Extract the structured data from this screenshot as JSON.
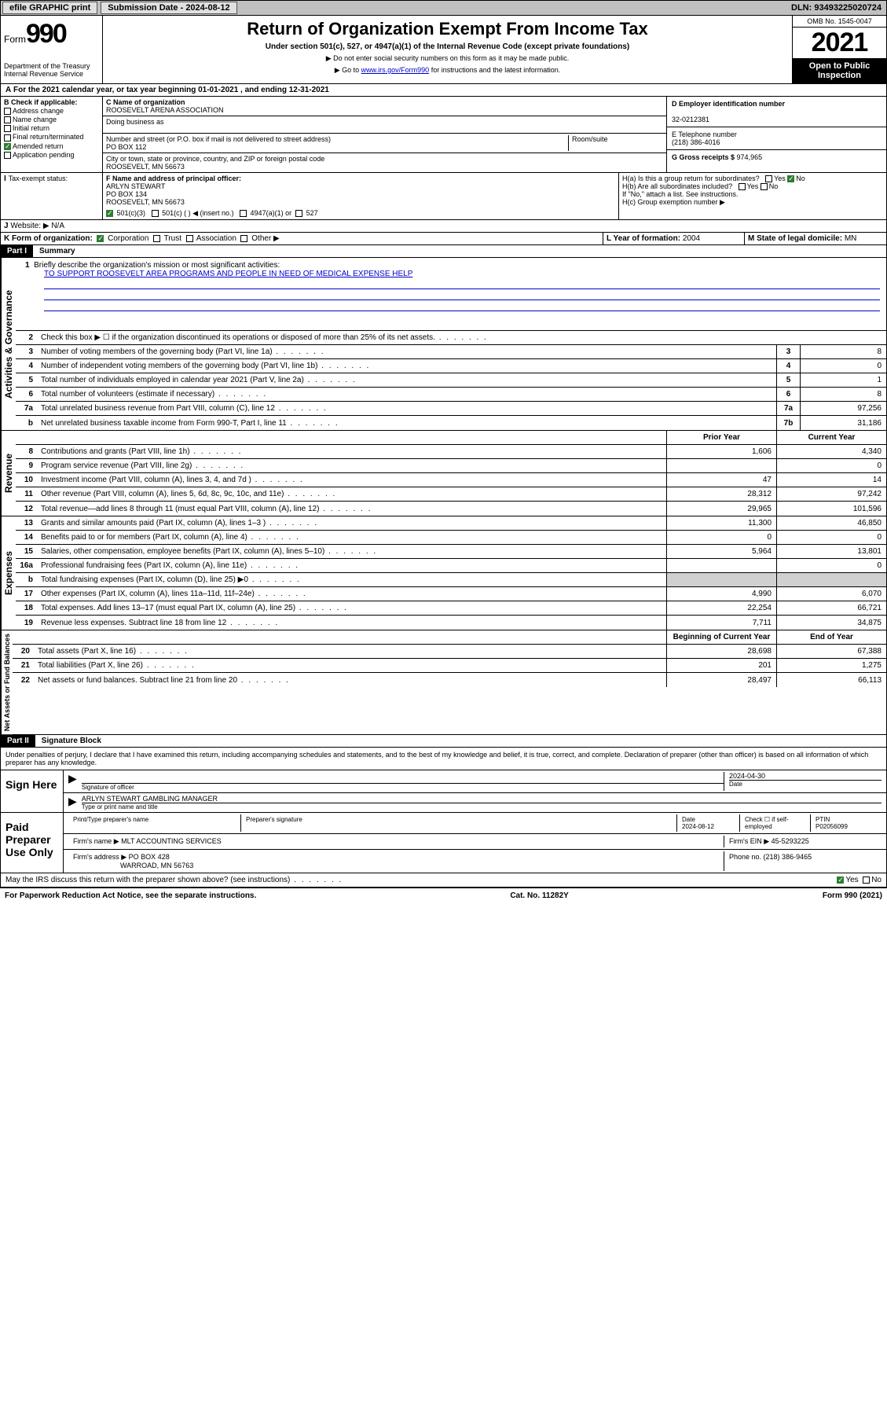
{
  "topbar": {
    "efile": "efile GRAPHIC print",
    "submission_label": "Submission Date - 2024-08-12",
    "dln": "DLN: 93493225020724"
  },
  "header": {
    "form_word": "Form",
    "form_num": "990",
    "dept": "Department of the Treasury Internal Revenue Service",
    "title": "Return of Organization Exempt From Income Tax",
    "subtitle": "Under section 501(c), 527, or 4947(a)(1) of the Internal Revenue Code (except private foundations)",
    "note1": "▶ Do not enter social security numbers on this form as it may be made public.",
    "note2_pre": "▶ Go to ",
    "note2_link": "www.irs.gov/Form990",
    "note2_post": " for instructions and the latest information.",
    "omb": "OMB No. 1545-0047",
    "year": "2021",
    "open": "Open to Public Inspection"
  },
  "line_a": "For the 2021 calendar year, or tax year beginning 01-01-2021   , and ending 12-31-2021",
  "section_b": {
    "title": "B Check if applicable:",
    "opts": [
      "Address change",
      "Name change",
      "Initial return",
      "Final return/terminated",
      "Amended return",
      "Application pending"
    ]
  },
  "block_c": {
    "label_name": "C Name of organization",
    "name": "ROOSEVELT ARENA ASSOCIATION",
    "dba_label": "Doing business as",
    "addr_label": "Number and street (or P.O. box if mail is not delivered to street address)",
    "room_label": "Room/suite",
    "addr": "PO BOX 112",
    "city_label": "City or town, state or province, country, and ZIP or foreign postal code",
    "city": "ROOSEVELT, MN  56673"
  },
  "block_d": {
    "label": "D Employer identification number",
    "val": "32-0212381"
  },
  "block_e": {
    "label": "E Telephone number",
    "val": "(218) 386-4016"
  },
  "block_g": {
    "label": "G Gross receipts $ ",
    "val": "974,965"
  },
  "block_f": {
    "label": "F Name and address of principal officer:",
    "lines": [
      "ARLYN STEWART",
      "PO BOX 134",
      "ROOSEVELT, MN  56673"
    ]
  },
  "block_h": {
    "a": "H(a)  Is this a group return for subordinates?",
    "b": "H(b)  Are all subordinates included?",
    "note": "If \"No,\" attach a list. See instructions.",
    "c": "H(c)  Group exemption number ▶"
  },
  "line_i": {
    "label": "Tax-exempt status:",
    "opts": [
      "501(c)(3)",
      "501(c) (  ) ◀ (insert no.)",
      "4947(a)(1) or",
      "527"
    ]
  },
  "line_j": {
    "label": "Website: ▶",
    "val": "N/A"
  },
  "line_k": {
    "label": "K Form of organization:",
    "opts": [
      "Corporation",
      "Trust",
      "Association",
      "Other ▶"
    ]
  },
  "line_l": {
    "label": "L Year of formation: ",
    "val": "2004"
  },
  "line_m": {
    "label": "M State of legal domicile: ",
    "val": "MN"
  },
  "part1": {
    "hdr": "Part I",
    "title": "Summary"
  },
  "mission": {
    "q": "Briefly describe the organization's mission or most significant activities:",
    "text": "TO SUPPORT ROOSEVELT AREA PROGRAMS AND PEOPLE IN NEED OF MEDICAL EXPENSE HELP"
  },
  "gov_lines": [
    {
      "n": "2",
      "d": "Check this box ▶ ☐  if the organization discontinued its operations or disposed of more than 25% of its net assets.",
      "box": "",
      "v": ""
    },
    {
      "n": "3",
      "d": "Number of voting members of the governing body (Part VI, line 1a)",
      "box": "3",
      "v": "8"
    },
    {
      "n": "4",
      "d": "Number of independent voting members of the governing body (Part VI, line 1b)",
      "box": "4",
      "v": "0"
    },
    {
      "n": "5",
      "d": "Total number of individuals employed in calendar year 2021 (Part V, line 2a)",
      "box": "5",
      "v": "1"
    },
    {
      "n": "6",
      "d": "Total number of volunteers (estimate if necessary)",
      "box": "6",
      "v": "8"
    },
    {
      "n": "7a",
      "d": "Total unrelated business revenue from Part VIII, column (C), line 12",
      "box": "7a",
      "v": "97,256"
    },
    {
      "n": "b",
      "d": "Net unrelated business taxable income from Form 990-T, Part I, line 11",
      "box": "7b",
      "v": "31,186"
    }
  ],
  "rev_hdr": {
    "prior": "Prior Year",
    "current": "Current Year"
  },
  "rev_lines": [
    {
      "n": "8",
      "d": "Contributions and grants (Part VIII, line 1h)",
      "p": "1,606",
      "c": "4,340"
    },
    {
      "n": "9",
      "d": "Program service revenue (Part VIII, line 2g)",
      "p": "",
      "c": "0"
    },
    {
      "n": "10",
      "d": "Investment income (Part VIII, column (A), lines 3, 4, and 7d )",
      "p": "47",
      "c": "14"
    },
    {
      "n": "11",
      "d": "Other revenue (Part VIII, column (A), lines 5, 6d, 8c, 9c, 10c, and 11e)",
      "p": "28,312",
      "c": "97,242"
    },
    {
      "n": "12",
      "d": "Total revenue—add lines 8 through 11 (must equal Part VIII, column (A), line 12)",
      "p": "29,965",
      "c": "101,596"
    }
  ],
  "exp_lines": [
    {
      "n": "13",
      "d": "Grants and similar amounts paid (Part IX, column (A), lines 1–3 )",
      "p": "11,300",
      "c": "46,850"
    },
    {
      "n": "14",
      "d": "Benefits paid to or for members (Part IX, column (A), line 4)",
      "p": "0",
      "c": "0"
    },
    {
      "n": "15",
      "d": "Salaries, other compensation, employee benefits (Part IX, column (A), lines 5–10)",
      "p": "5,964",
      "c": "13,801"
    },
    {
      "n": "16a",
      "d": "Professional fundraising fees (Part IX, column (A), line 11e)",
      "p": "",
      "c": "0"
    },
    {
      "n": "b",
      "d": "Total fundraising expenses (Part IX, column (D), line 25) ▶0",
      "p": "shaded",
      "c": "shaded"
    },
    {
      "n": "17",
      "d": "Other expenses (Part IX, column (A), lines 11a–11d, 11f–24e)",
      "p": "4,990",
      "c": "6,070"
    },
    {
      "n": "18",
      "d": "Total expenses. Add lines 13–17 (must equal Part IX, column (A), line 25)",
      "p": "22,254",
      "c": "66,721"
    },
    {
      "n": "19",
      "d": "Revenue less expenses. Subtract line 18 from line 12",
      "p": "7,711",
      "c": "34,875"
    }
  ],
  "net_hdr": {
    "begin": "Beginning of Current Year",
    "end": "End of Year"
  },
  "net_lines": [
    {
      "n": "20",
      "d": "Total assets (Part X, line 16)",
      "p": "28,698",
      "c": "67,388"
    },
    {
      "n": "21",
      "d": "Total liabilities (Part X, line 26)",
      "p": "201",
      "c": "1,275"
    },
    {
      "n": "22",
      "d": "Net assets or fund balances. Subtract line 21 from line 20",
      "p": "28,497",
      "c": "66,113"
    }
  ],
  "sidebars": {
    "gov": "Activities & Governance",
    "rev": "Revenue",
    "exp": "Expenses",
    "net": "Net Assets or Fund Balances"
  },
  "part2": {
    "hdr": "Part II",
    "title": "Signature Block"
  },
  "perjury": "Under penalties of perjury, I declare that I have examined this return, including accompanying schedules and statements, and to the best of my knowledge and belief, it is true, correct, and complete. Declaration of preparer (other than officer) is based on all information of which preparer has any knowledge.",
  "sign": {
    "left": "Sign Here",
    "sig_label": "Signature of officer",
    "date": "2024-04-30",
    "date_label": "Date",
    "name": "ARLYN STEWART GAMBLING MANAGER",
    "name_label": "Type or print name and title"
  },
  "preparer": {
    "left": "Paid Preparer Use Only",
    "h1": "Print/Type preparer's name",
    "h2": "Preparer's signature",
    "h3": "Date",
    "date": "2024-08-12",
    "h4": "Check ☐ if self-employed",
    "h5": "PTIN",
    "ptin": "P02056099",
    "firm_label": "Firm's name    ▶",
    "firm": "MLT ACCOUNTING SERVICES",
    "ein_label": "Firm's EIN ▶",
    "ein": "45-5293225",
    "addr_label": "Firm's address ▶",
    "addr1": "PO BOX 428",
    "addr2": "WARROAD, MN  56763",
    "phone_label": "Phone no. ",
    "phone": "(218) 386-9465"
  },
  "discuss": "May the IRS discuss this return with the preparer shown above? (see instructions)",
  "footer": {
    "left": "For Paperwork Reduction Act Notice, see the separate instructions.",
    "mid": "Cat. No. 11282Y",
    "right": "Form 990 (2021)"
  }
}
